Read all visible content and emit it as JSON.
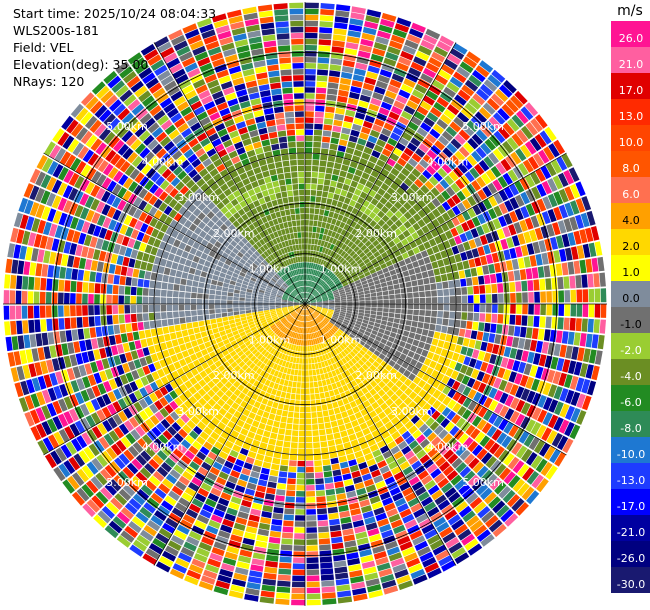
{
  "header": {
    "start_time_line": "Start time: 2025/10/24 08:04:33",
    "instrument": "WLS200s-181",
    "field_line": "Field: VEL",
    "elevation_line": "Elevation(deg): 35.00",
    "nrays_line": "NRays: 120"
  },
  "chart_data": {
    "type": "ppi-polar-heatmap",
    "field": "VEL",
    "elevation_deg": 35.0,
    "nrays": 120,
    "range_max_km": 6.0,
    "range_rings_km": [
      1,
      2,
      3,
      4,
      5
    ],
    "range_labels": [
      "1.00km",
      "2.00km",
      "3.00km",
      "4.00km",
      "5.00km"
    ],
    "colorbar": {
      "unit": "m/s",
      "tick_labels": [
        "26.0",
        "21.0",
        "17.0",
        "13.0",
        "10.0",
        "8.0",
        "6.0",
        "4.0",
        "2.0",
        "1.0",
        "0.0",
        "-1.0",
        "-2.0",
        "-4.0",
        "-6.0",
        "-8.0",
        "-10.0",
        "-13.0",
        "-17.0",
        "-21.0",
        "-26.0",
        "-30.0"
      ],
      "colors": [
        "#ff1493",
        "#ff5fa0",
        "#e00000",
        "#ff2a00",
        "#ff4500",
        "#ff5500",
        "#ff7050",
        "#ffa000",
        "#ffd800",
        "#ffff00",
        "#7f8c9c",
        "#707070",
        "#9acd32",
        "#6b8e23",
        "#228b22",
        "#2e8b57",
        "#1e78d2",
        "#1e3cff",
        "#0000ff",
        "#0000a0",
        "#000080",
        "#191970"
      ]
    },
    "velocity_pattern": [
      {
        "sector": "north",
        "range_km": [
          0,
          3.2
        ],
        "approx_velocity_ms": -3.0
      },
      {
        "sector": "north-center",
        "range_km": [
          0,
          0.8
        ],
        "approx_velocity_ms": -6.0
      },
      {
        "sector": "south",
        "range_km": [
          0,
          3.2
        ],
        "approx_velocity_ms": 3.0
      },
      {
        "sector": "south-center",
        "range_km": [
          0,
          0.8
        ],
        "approx_velocity_ms": 5.0
      },
      {
        "sector": "west",
        "range_km": [
          0.5,
          3.0
        ],
        "approx_velocity_ms": 0.0
      },
      {
        "sector": "east",
        "range_km": [
          0.5,
          2.5
        ],
        "approx_velocity_ms": 0.0
      },
      {
        "sector": "outer-ring",
        "range_km": [
          3.3,
          6.0
        ],
        "approx_velocity_ms": "noise"
      }
    ]
  }
}
